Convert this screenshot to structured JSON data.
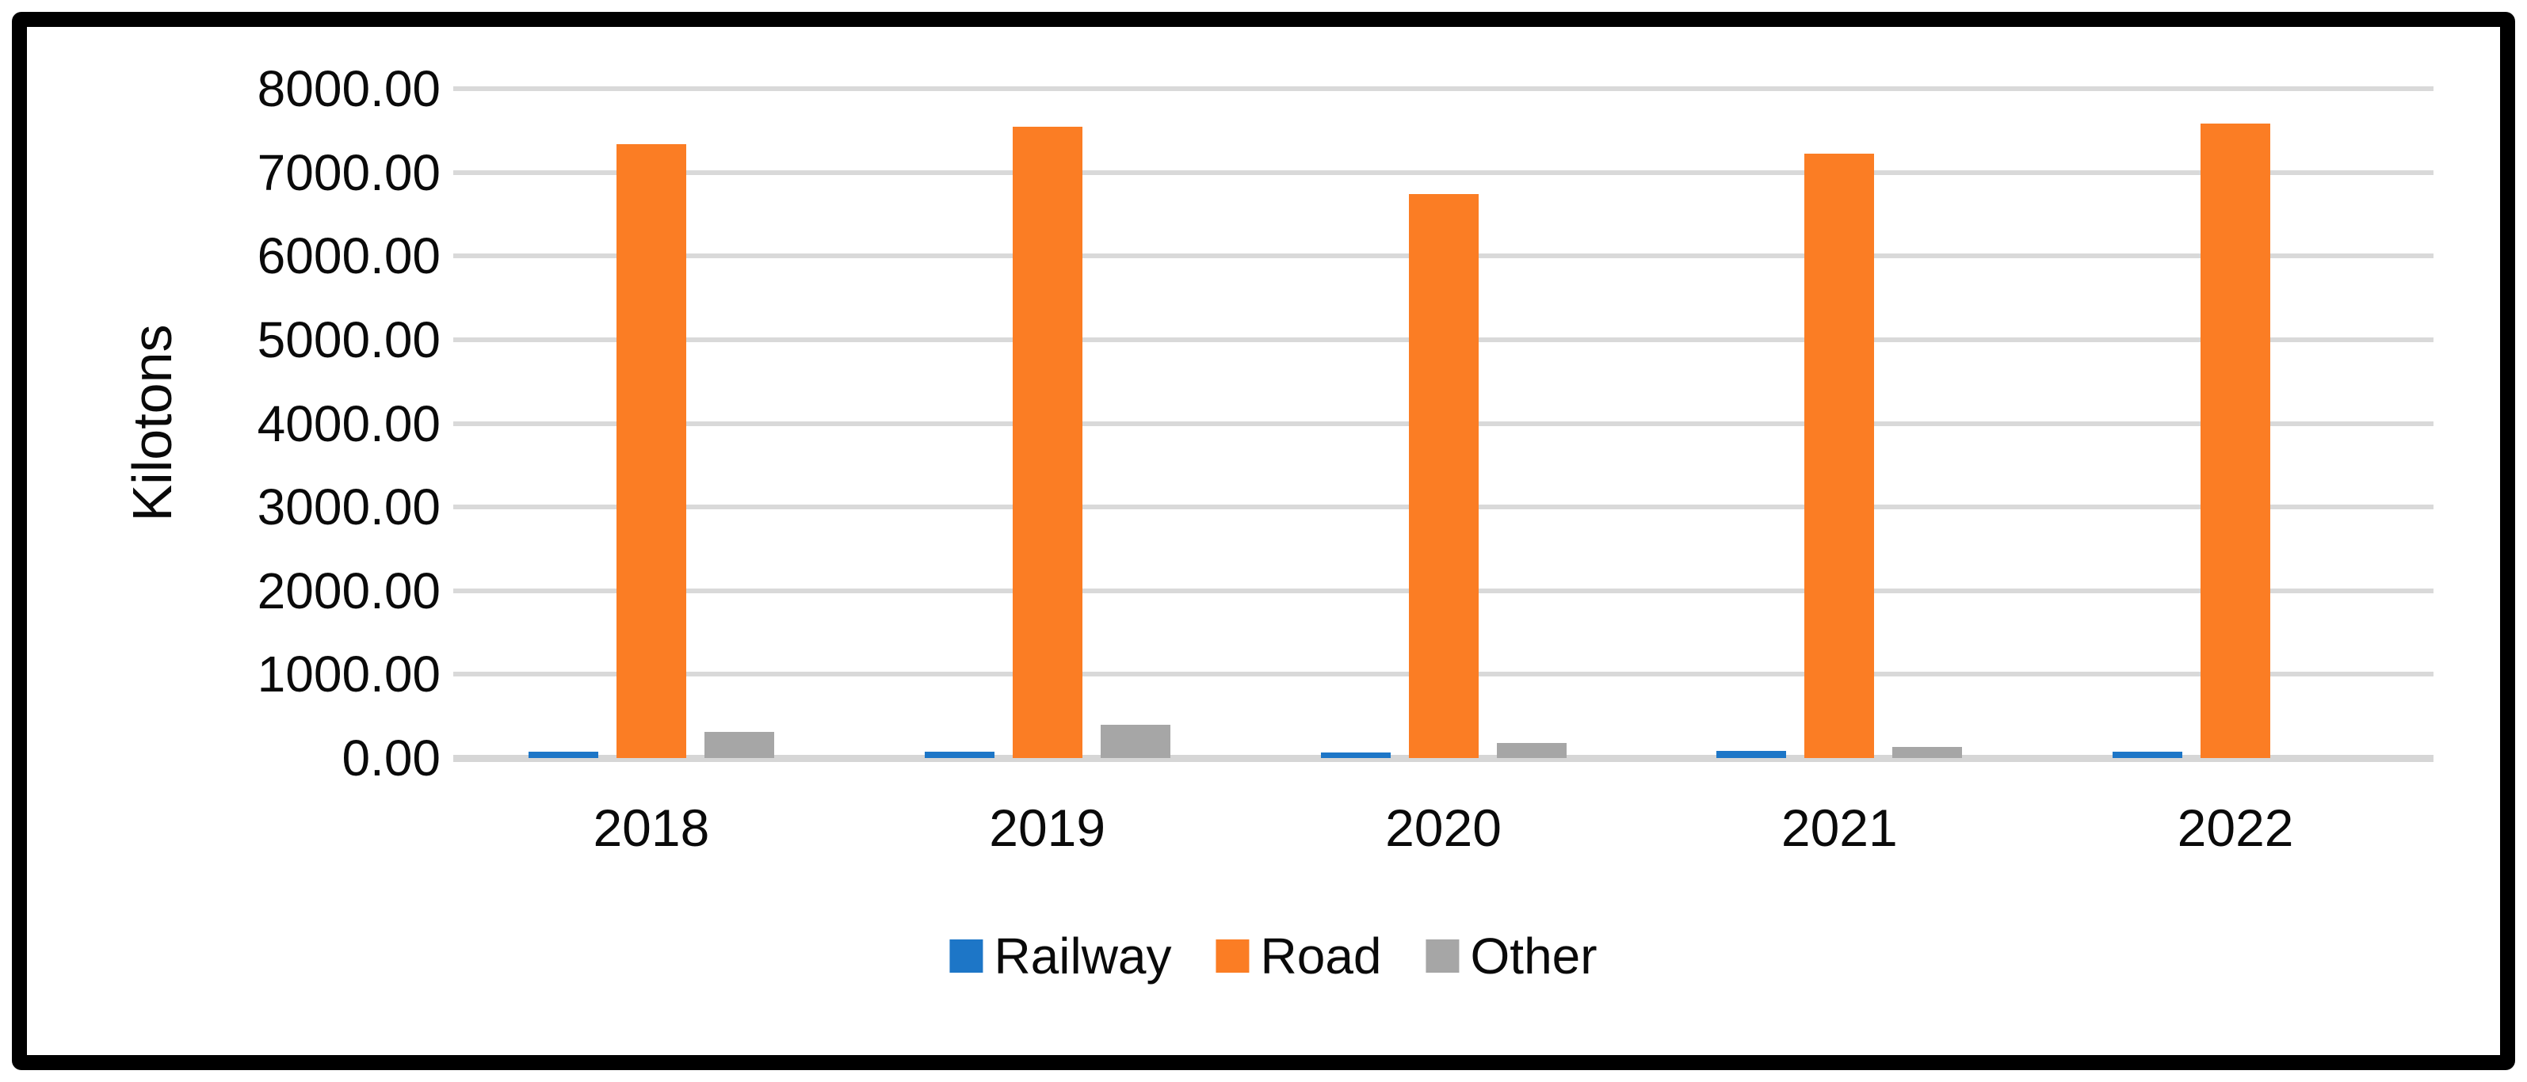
{
  "chart_data": {
    "type": "bar",
    "title": "",
    "xlabel": "",
    "ylabel": "Kilotons",
    "categories": [
      "2018",
      "2019",
      "2020",
      "2021",
      "2022"
    ],
    "series": [
      {
        "name": "Railway",
        "color": "#1D76C7",
        "values": [
          75,
          80,
          70,
          85,
          80
        ]
      },
      {
        "name": "Road",
        "color": "#FB7D24",
        "values": [
          7340,
          7550,
          6740,
          7220,
          7580
        ]
      },
      {
        "name": "Other",
        "color": "#A6A6A6",
        "values": [
          310,
          400,
          180,
          130,
          0
        ]
      }
    ],
    "ylim": [
      0,
      8000
    ],
    "ytick_step": 1000,
    "ytick_decimals": 2,
    "ytick_labels": [
      "0.00",
      "1000.00",
      "2000.00",
      "3000.00",
      "4000.00",
      "5000.00",
      "6000.00",
      "7000.00",
      "8000.00"
    ],
    "grid": true,
    "legend_position": "bottom",
    "legend_entries": [
      "Railway",
      "Road",
      "Other"
    ],
    "colors": {
      "gridline": "#D9D9D9",
      "axis_line": "#D6D6D6",
      "text": "#0a0a0a",
      "frame_border": "#000000",
      "background": "#ffffff"
    }
  }
}
